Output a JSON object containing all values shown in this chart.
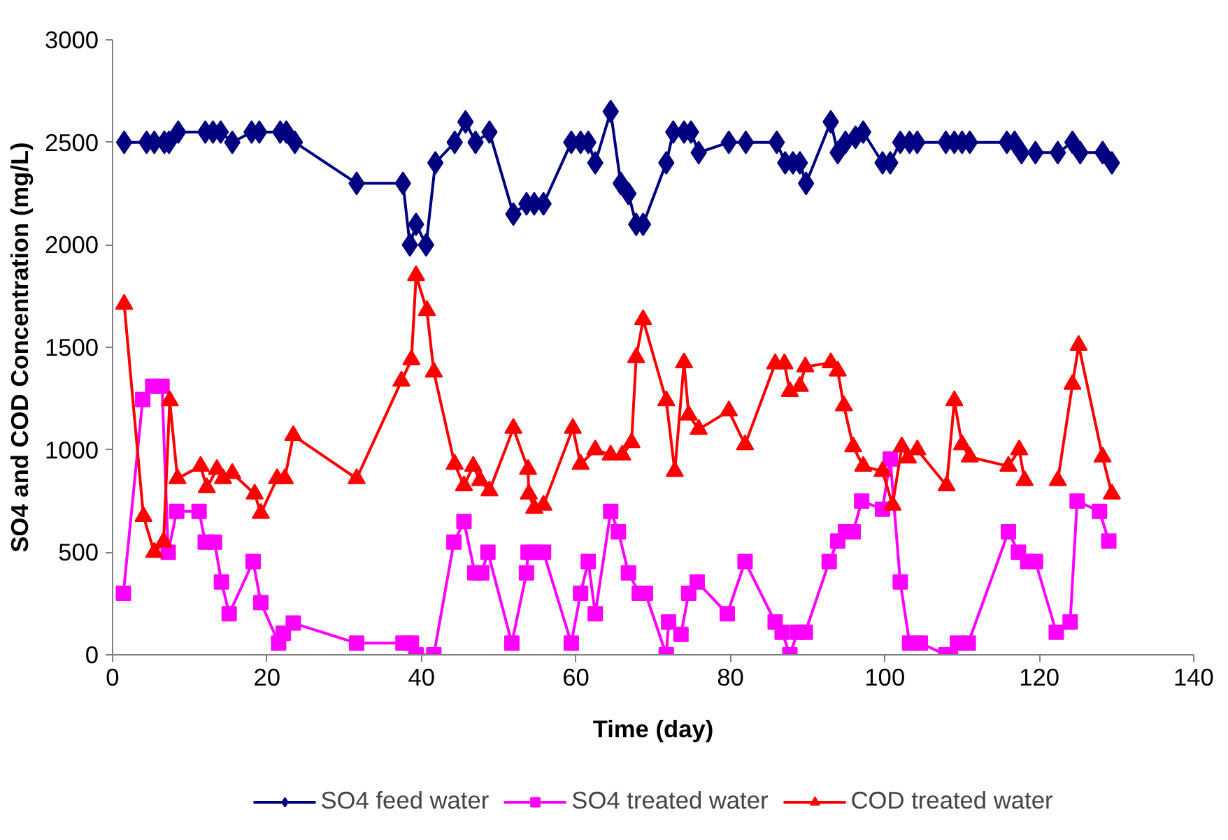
{
  "chart_data": {
    "type": "line",
    "xlabel": "Time (day)",
    "ylabel": "SO4 and COD Concentration (mg/L)",
    "xlim": [
      0,
      140
    ],
    "xticks": [
      0,
      20,
      40,
      60,
      80,
      100,
      120,
      140
    ],
    "ylim": [
      0,
      3000
    ],
    "yticks": [
      0,
      500,
      1000,
      1500,
      2000,
      2500,
      3000
    ],
    "grid": false,
    "legend": "bottom",
    "line_style": "solid",
    "series": [
      {
        "name": "SO4 feed water",
        "color": "#000080",
        "marker": "diamond",
        "x": [
          1.5,
          4.4,
          5.4,
          6.7,
          7.3,
          8.5,
          12,
          13,
          14,
          15.5,
          18,
          19,
          21.7,
          22.5,
          23.6,
          31.6,
          37.6,
          38.5,
          39.3,
          40.6,
          41.8,
          44.3,
          45.7,
          47,
          48.8,
          51.9,
          53.6,
          54.6,
          55.8,
          59.4,
          60.6,
          61.6,
          62.5,
          64.5,
          65.8,
          66.8,
          67.8,
          68.7,
          71.7,
          72.6,
          74,
          74.9,
          75.9,
          79.8,
          82,
          86,
          87.1,
          88.1,
          89,
          89.8,
          93,
          93.9,
          94.9,
          96.2,
          97.2,
          99.7,
          100.7,
          102,
          103.2,
          104.2,
          107.9,
          109,
          110,
          111,
          115.8,
          116.8,
          117.7,
          119.5,
          122.4,
          124.3,
          125.3,
          128.2,
          129.4
        ],
        "values": [
          2500,
          2500,
          2500,
          2500,
          2500,
          2550,
          2550,
          2550,
          2550,
          2500,
          2550,
          2550,
          2550,
          2550,
          2500,
          2300,
          2300,
          2000,
          2100,
          2000,
          2400,
          2500,
          2600,
          2500,
          2550,
          2150,
          2200,
          2200,
          2200,
          2500,
          2500,
          2500,
          2400,
          2650,
          2300,
          2250,
          2100,
          2100,
          2400,
          2550,
          2550,
          2550,
          2450,
          2500,
          2500,
          2500,
          2400,
          2400,
          2400,
          2300,
          2600,
          2450,
          2500,
          2525,
          2550,
          2400,
          2400,
          2500,
          2500,
          2500,
          2500,
          2500,
          2500,
          2500,
          2500,
          2500,
          2450,
          2450,
          2450,
          2500,
          2450,
          2450,
          2400
        ]
      },
      {
        "name": "SO4 treated water",
        "color": "#ff00ff",
        "marker": "square",
        "x": [
          1.4,
          3.9,
          5.2,
          6.4,
          7.2,
          8.3,
          11.2,
          12,
          13.2,
          14.1,
          15.1,
          18.2,
          19.2,
          21.5,
          22.1,
          23.4,
          31.6,
          37.6,
          38.7,
          39.3,
          41.6,
          44.2,
          45.5,
          46.9,
          47.8,
          48.6,
          51.7,
          53.6,
          53.8,
          54.6,
          55.8,
          59.4,
          60.6,
          61.6,
          62.5,
          64.5,
          65.5,
          66.8,
          68.2,
          69,
          71.7,
          72,
          73.6,
          74.6,
          75.7,
          79.6,
          81.9,
          85.8,
          86.7,
          87.7,
          88.7,
          89.7,
          92.8,
          93.9,
          94.9,
          95.9,
          97,
          99.7,
          100.7,
          102,
          103.2,
          104.6,
          107.9,
          108.5,
          109.4,
          110.8,
          116,
          117.3,
          118.5,
          119.5,
          122.2,
          124,
          124.9,
          127.8,
          129
        ],
        "values": [
          300,
          1245,
          1310,
          1310,
          500,
          700,
          700,
          550,
          550,
          355,
          200,
          455,
          255,
          57,
          105,
          155,
          57,
          57,
          57,
          0,
          0,
          550,
          650,
          400,
          400,
          500,
          57,
          400,
          500,
          500,
          500,
          57,
          300,
          455,
          200,
          700,
          600,
          400,
          300,
          300,
          0,
          160,
          100,
          300,
          355,
          200,
          455,
          160,
          110,
          0,
          110,
          110,
          455,
          555,
          600,
          600,
          750,
          710,
          955,
          355,
          57,
          57,
          0,
          0,
          57,
          57,
          600,
          500,
          455,
          455,
          110,
          160,
          750,
          700,
          555
        ]
      },
      {
        "name": "COD treated water",
        "color": "#ff0000",
        "marker": "triangle",
        "x": [
          1.5,
          4,
          5.4,
          6.6,
          7.4,
          8.4,
          11.4,
          12.2,
          13.5,
          14.3,
          15.5,
          18.4,
          19.2,
          21.3,
          22.3,
          23.4,
          31.6,
          37.4,
          38.7,
          39.3,
          40.7,
          41.6,
          44.3,
          45.5,
          46.7,
          47.6,
          48.8,
          51.9,
          53.8,
          53.9,
          54.6,
          55.8,
          59.6,
          60.6,
          62.5,
          64.5,
          66,
          67.2,
          67.8,
          68.7,
          71.7,
          72.8,
          74,
          74.6,
          75.9,
          79.8,
          81.9,
          85.8,
          87,
          87.7,
          89,
          89.7,
          93,
          93.9,
          94.7,
          95.9,
          97.2,
          99.7,
          101,
          102.2,
          103,
          104.2,
          108,
          109,
          110,
          111,
          116,
          117.4,
          118.1,
          120,
          122.4,
          124.3,
          125.1,
          128.2,
          129.4
        ],
        "values": [
          1710,
          675,
          500,
          550,
          1240,
          860,
          920,
          815,
          905,
          860,
          885,
          785,
          690,
          860,
          860,
          1070,
          860,
          1335,
          1440,
          1850,
          1680,
          1380,
          930,
          825,
          920,
          850,
          800,
          1105,
          905,
          785,
          715,
          730,
          1105,
          930,
          1000,
          975,
          975,
          1035,
          1450,
          1635,
          1240,
          895,
          1425,
          1170,
          1100,
          1190,
          1025,
          1420,
          1420,
          1285,
          1310,
          1405,
          1425,
          1385,
          1215,
          1015,
          920,
          895,
          730,
          1015,
          960,
          1000,
          825,
          1240,
          1025,
          965,
          920,
          1000,
          850,
          null,
          850,
          1320,
          1510,
          965,
          785
        ]
      }
    ]
  }
}
